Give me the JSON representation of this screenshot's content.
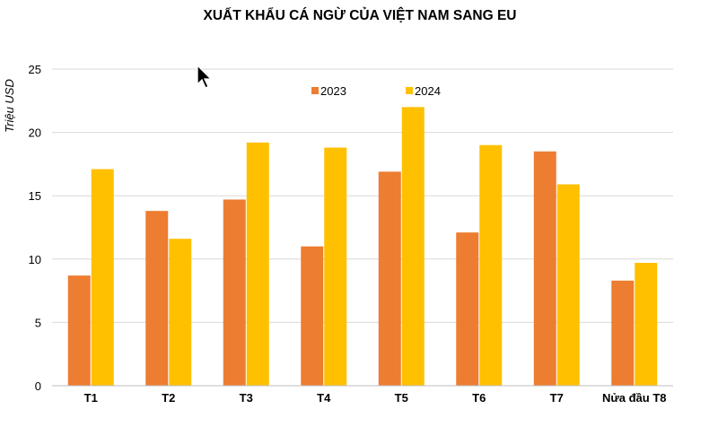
{
  "chart_data": {
    "type": "bar",
    "title": "XUẤT KHẨU CÁ NGỪ CỦA VIỆT NAM SANG EU",
    "ylabel": "Triệu USD",
    "xlabel": "",
    "categories": [
      "T1",
      "T2",
      "T3",
      "T4",
      "T5",
      "T6",
      "T7",
      "Nửa đầu T8"
    ],
    "series": [
      {
        "name": "2023",
        "color": "#ED7D31",
        "values": [
          8.7,
          13.8,
          14.7,
          11.0,
          16.9,
          12.1,
          18.5,
          8.3
        ]
      },
      {
        "name": "2024",
        "color": "#FFC000",
        "values": [
          17.1,
          11.6,
          19.2,
          18.8,
          22.0,
          19.0,
          15.9,
          9.7
        ]
      }
    ],
    "ylim": [
      0,
      25
    ],
    "yticks": [
      0,
      5,
      10,
      15,
      20,
      25
    ],
    "grid": true,
    "legend_position": "top-center"
  },
  "cursor": {
    "icon": "mouse-pointer-icon"
  }
}
